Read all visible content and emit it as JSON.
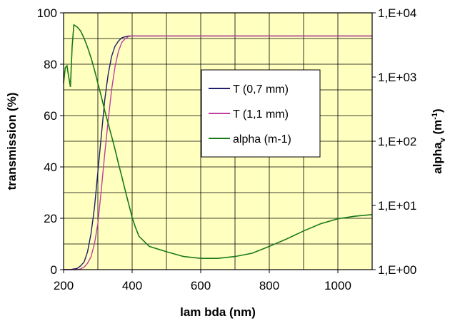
{
  "chart_data": {
    "type": "line",
    "xlabel": "lam bda (nm)",
    "ylabel": "transmission (%)",
    "y2label_main": "alpha",
    "y2label_sub": "v",
    "y2label_unit_pre": " (m",
    "y2label_unit_sup": "-1",
    "y2label_unit_post": ")",
    "xlim": [
      200,
      1100
    ],
    "ylim": [
      0,
      100
    ],
    "y2lim": [
      1,
      10000
    ],
    "y2scale": "log",
    "x_ticks": [
      "200",
      "400",
      "600",
      "800",
      "1000"
    ],
    "x_tick_values": [
      200,
      400,
      600,
      800,
      1000
    ],
    "y_ticks": [
      "0",
      "20",
      "40",
      "60",
      "80",
      "100"
    ],
    "y_tick_values": [
      0,
      20,
      40,
      60,
      80,
      100
    ],
    "y2_ticks": [
      "1,E+00",
      "1,E+01",
      "1,E+02",
      "1,E+03",
      "1,E+04"
    ],
    "y2_tick_values": [
      1,
      10,
      100,
      1000,
      10000
    ],
    "grid": true,
    "legend_position": "center-right",
    "series": [
      {
        "name": "T (0,7 mm)",
        "axis": "left",
        "color": "#1f1f6e",
        "x": [
          200,
          220,
          240,
          250,
          260,
          270,
          280,
          290,
          300,
          310,
          320,
          330,
          340,
          350,
          360,
          370,
          380,
          390,
          400,
          420,
          440,
          460,
          480,
          500,
          600,
          700,
          800,
          900,
          1000,
          1100
        ],
        "y": [
          0,
          0,
          0.5,
          1.5,
          3,
          7,
          14,
          24,
          38,
          52,
          66,
          76,
          83,
          87,
          89,
          90.3,
          90.7,
          91,
          91,
          91,
          91,
          91,
          91,
          91,
          91,
          91,
          91,
          91,
          91,
          91
        ]
      },
      {
        "name": "T (1,1 mm)",
        "axis": "left",
        "color": "#c040a0",
        "x": [
          200,
          240,
          250,
          260,
          270,
          280,
          290,
          300,
          310,
          320,
          330,
          340,
          350,
          360,
          370,
          380,
          390,
          400,
          420,
          440,
          460,
          480,
          500,
          600,
          700,
          800,
          900,
          1000,
          1100
        ],
        "y": [
          0,
          0,
          0.3,
          1,
          2.5,
          5,
          10,
          18,
          31,
          45,
          58,
          70,
          79,
          85,
          88.5,
          90,
          90.8,
          91,
          91,
          91,
          91,
          91,
          91,
          91,
          91,
          91,
          91,
          91,
          91
        ]
      },
      {
        "name": "alpha (m-1)",
        "axis": "right",
        "color": "#1a7a1a",
        "x": [
          200,
          205,
          210,
          215,
          220,
          225,
          230,
          240,
          250,
          260,
          270,
          280,
          290,
          300,
          310,
          320,
          330,
          340,
          350,
          360,
          370,
          380,
          390,
          400,
          410,
          420,
          450,
          500,
          550,
          600,
          650,
          700,
          750,
          800,
          850,
          900,
          950,
          1000,
          1050,
          1100
        ],
        "y": [
          800,
          1400,
          1500,
          1000,
          700,
          3000,
          6500,
          6000,
          5200,
          4000,
          2900,
          2000,
          1300,
          800,
          500,
          300,
          190,
          120,
          75,
          45,
          28,
          17,
          10.5,
          6.5,
          4.5,
          3.3,
          2.3,
          1.9,
          1.6,
          1.5,
          1.5,
          1.6,
          1.8,
          2.3,
          3.0,
          4.0,
          5.2,
          6.2,
          6.8,
          7.2
        ]
      }
    ]
  },
  "style": {
    "plot_bg": "#ffffc0",
    "grid_color": "#000000",
    "legend_bg": "#ffffff"
  }
}
